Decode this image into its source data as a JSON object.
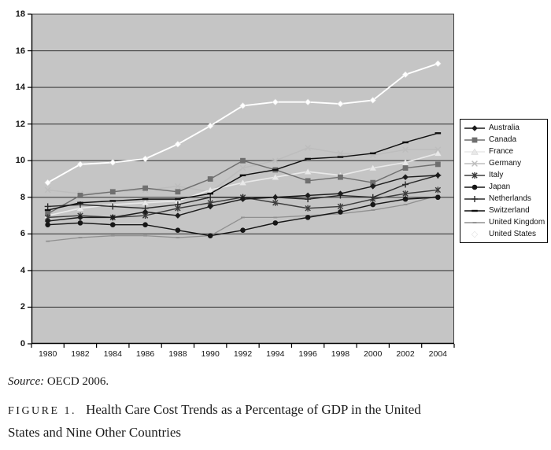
{
  "figure": {
    "source": {
      "prefix": "Source:",
      "text": "OECD 2006."
    },
    "caption": {
      "label": "FIGURE 1.",
      "line1": "Health Care Cost Trends as a Percentage of GDP in the United",
      "line2": "States and Nine Other Countries"
    }
  },
  "chart_data": {
    "type": "line",
    "title": "",
    "xlabel": "",
    "ylabel": "",
    "x": [
      1980,
      1982,
      1984,
      1986,
      1988,
      1990,
      1992,
      1994,
      1996,
      1998,
      2000,
      2002,
      2004
    ],
    "ylim": [
      0,
      18
    ],
    "y_tick_step": 2,
    "grid": true,
    "legend_position": "right",
    "plot_bg": "#c5c5c5",
    "grid_color": "#3f3f3f",
    "axis_color": "#000000",
    "series": [
      {
        "name": "Australia",
        "marker": "diamond",
        "color": "#1c1c1c",
        "values": [
          6.7,
          6.9,
          6.9,
          7.2,
          7.0,
          7.5,
          7.9,
          8.0,
          8.1,
          8.2,
          8.6,
          9.1,
          9.2
        ]
      },
      {
        "name": "Canada",
        "marker": "square",
        "color": "#6f6f6f",
        "values": [
          7.1,
          8.1,
          8.3,
          8.5,
          8.3,
          9.0,
          10.0,
          9.5,
          8.9,
          9.1,
          8.8,
          9.6,
          9.8
        ]
      },
      {
        "name": "France",
        "marker": "triangle",
        "color": "#e9e9e9",
        "values": [
          7.0,
          7.4,
          7.6,
          7.7,
          7.8,
          8.4,
          8.8,
          9.1,
          9.4,
          9.2,
          9.6,
          9.9,
          10.4
        ]
      },
      {
        "name": "Germany",
        "marker": "x",
        "color": "#bdbdbd",
        "values": [
          8.4,
          8.2,
          8.3,
          8.4,
          8.6,
          8.3,
          9.6,
          10.0,
          10.7,
          10.4,
          10.3,
          10.6,
          10.6
        ]
      },
      {
        "name": "Italy",
        "marker": "asterisk",
        "color": "#3d3d3d",
        "values": [
          6.9,
          7.0,
          6.9,
          7.0,
          7.4,
          7.7,
          8.0,
          7.7,
          7.4,
          7.5,
          7.9,
          8.2,
          8.4
        ]
      },
      {
        "name": "Japan",
        "marker": "circle",
        "color": "#161616",
        "values": [
          6.5,
          6.6,
          6.5,
          6.5,
          6.2,
          5.9,
          6.2,
          6.6,
          6.9,
          7.2,
          7.6,
          7.9,
          8.0
        ]
      },
      {
        "name": "Netherlands",
        "marker": "plus",
        "color": "#2a2a2a",
        "values": [
          7.5,
          7.6,
          7.5,
          7.4,
          7.6,
          8.0,
          8.0,
          8.0,
          7.9,
          8.1,
          8.0,
          8.7,
          9.2
        ]
      },
      {
        "name": "Switzerland",
        "marker": "dash",
        "color": "#101010",
        "values": [
          7.3,
          7.7,
          7.8,
          7.9,
          7.9,
          8.2,
          9.2,
          9.5,
          10.1,
          10.2,
          10.4,
          11.0,
          11.5
        ]
      },
      {
        "name": "United Kingdom",
        "marker": "tick",
        "color": "#909090",
        "values": [
          5.6,
          5.8,
          5.9,
          5.9,
          5.8,
          5.9,
          6.9,
          6.9,
          7.0,
          7.1,
          7.3,
          7.6,
          8.1
        ]
      },
      {
        "name": "United States",
        "marker": "diamond-open",
        "color": "#ffffff",
        "values": [
          8.8,
          9.8,
          9.9,
          10.1,
          10.9,
          11.9,
          13.0,
          13.2,
          13.2,
          13.1,
          13.3,
          14.7,
          15.3
        ]
      }
    ]
  }
}
